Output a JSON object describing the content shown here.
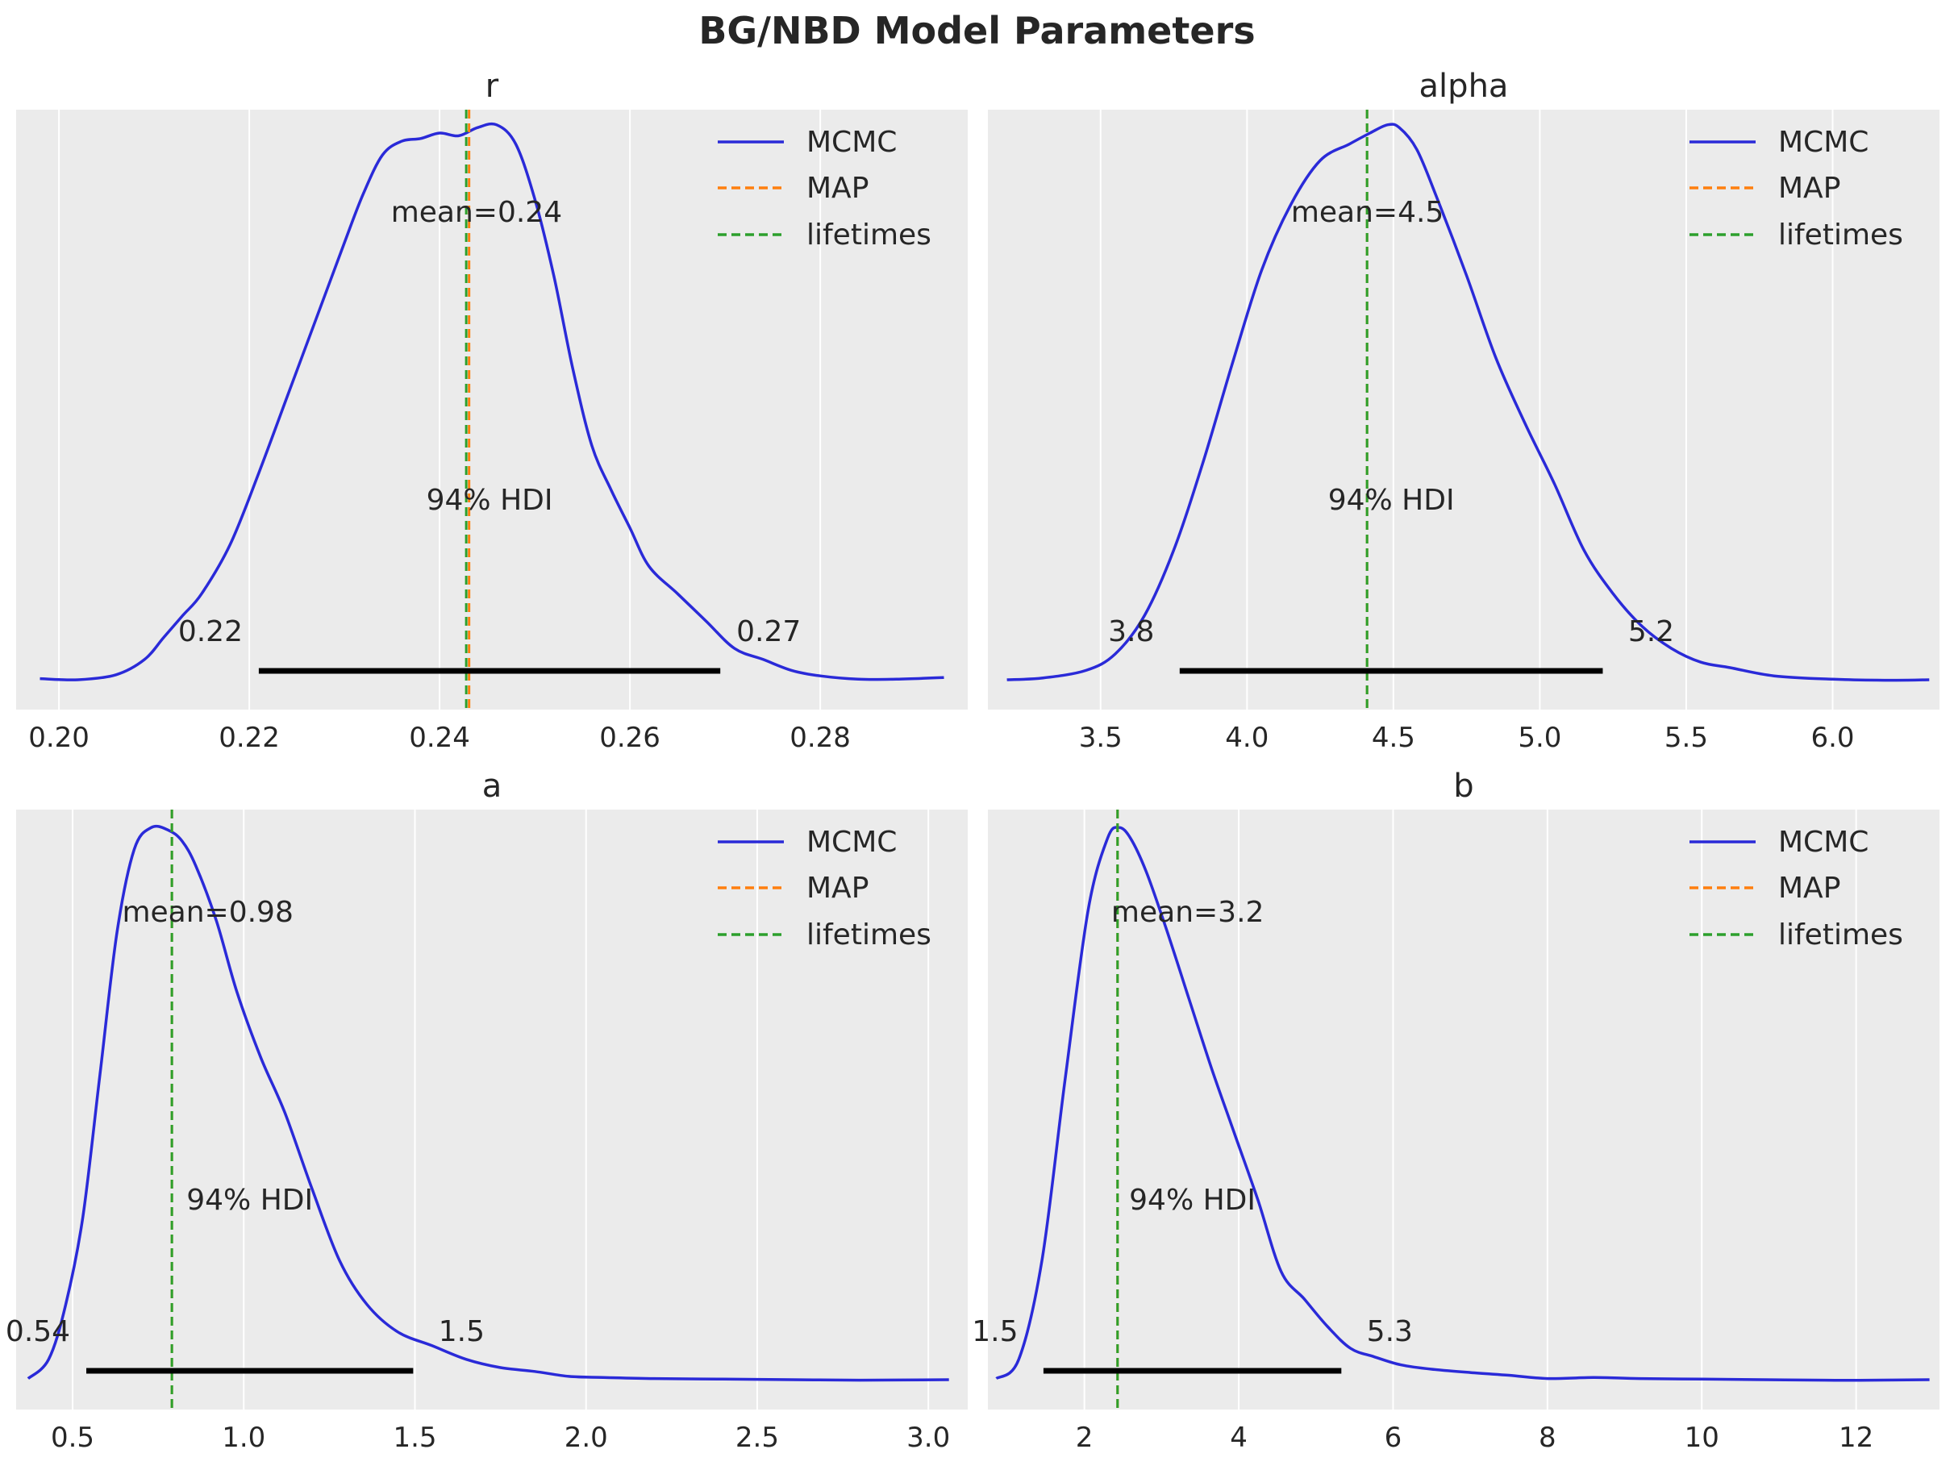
{
  "title": "BG/NBD Model Parameters",
  "colors": {
    "mcmc": "#2a2ad8",
    "map": "#ff7f0e",
    "lifetimes": "#2ca02c",
    "hdi": "#000000",
    "panel_bg": "#ebebeb"
  },
  "chart_data": [
    {
      "type": "line",
      "title": "r",
      "xlim": [
        0.1955,
        0.2955
      ],
      "xticks": [
        0.2,
        0.22,
        0.24,
        0.26,
        0.28
      ],
      "xtick_labels": [
        "0.20",
        "0.22",
        "0.24",
        "0.26",
        "0.28"
      ],
      "density": {
        "x": [
          0.198,
          0.202,
          0.206,
          0.209,
          0.211,
          0.213,
          0.215,
          0.218,
          0.221,
          0.224,
          0.227,
          0.23,
          0.232,
          0.234,
          0.236,
          0.238,
          0.24,
          0.242,
          0.244,
          0.246,
          0.248,
          0.25,
          0.252,
          0.254,
          0.256,
          0.258,
          0.26,
          0.262,
          0.265,
          0.268,
          0.271,
          0.274,
          0.277,
          0.28,
          0.284,
          0.288,
          0.293
        ],
        "y": [
          0.005,
          0.003,
          0.012,
          0.04,
          0.08,
          0.12,
          0.16,
          0.25,
          0.38,
          0.52,
          0.66,
          0.8,
          0.89,
          0.96,
          0.985,
          0.99,
          1.0,
          0.995,
          1.01,
          1.015,
          0.98,
          0.88,
          0.74,
          0.57,
          0.43,
          0.35,
          0.28,
          0.21,
          0.16,
          0.11,
          0.06,
          0.04,
          0.02,
          0.01,
          0.004,
          0.004,
          0.007
        ]
      },
      "mean_label": "mean=0.24",
      "hdi_label": "94% HDI",
      "hdi": [
        0.221,
        0.2695
      ],
      "hdi_low_label": "0.22",
      "hdi_high_label": "0.27",
      "map_value": 0.2431,
      "lifetimes_value": 0.2428
    },
    {
      "type": "line",
      "title": "alpha",
      "xlim": [
        3.115,
        6.365
      ],
      "xticks": [
        3.5,
        4.0,
        4.5,
        5.0,
        5.5,
        6.0
      ],
      "xtick_labels": [
        "3.5",
        "4.0",
        "4.5",
        "5.0",
        "5.5",
        "6.0"
      ],
      "density": {
        "x": [
          3.18,
          3.3,
          3.45,
          3.55,
          3.65,
          3.75,
          3.85,
          3.95,
          4.05,
          4.15,
          4.25,
          4.35,
          4.42,
          4.48,
          4.52,
          4.58,
          4.65,
          4.75,
          4.85,
          4.95,
          5.05,
          5.15,
          5.25,
          5.35,
          5.45,
          5.55,
          5.65,
          5.8,
          6.0,
          6.2,
          6.33
        ],
        "y": [
          0.003,
          0.006,
          0.02,
          0.05,
          0.12,
          0.24,
          0.4,
          0.58,
          0.75,
          0.87,
          0.95,
          0.98,
          1.0,
          1.015,
          1.01,
          0.97,
          0.88,
          0.74,
          0.59,
          0.47,
          0.36,
          0.24,
          0.16,
          0.1,
          0.06,
          0.035,
          0.025,
          0.01,
          0.004,
          0.002,
          0.003
        ]
      },
      "mean_label": "mean=4.5",
      "hdi_label": "94% HDI",
      "hdi": [
        3.77,
        5.215
      ],
      "hdi_low_label": "3.8",
      "hdi_high_label": "5.2",
      "map_value": 4.41,
      "lifetimes_value": 4.41
    },
    {
      "type": "line",
      "title": "a",
      "xlim": [
        0.335,
        3.115
      ],
      "xticks": [
        0.5,
        1.0,
        1.5,
        2.0,
        2.5,
        3.0
      ],
      "xtick_labels": [
        "0.5",
        "1.0",
        "1.5",
        "2.0",
        "2.5",
        "3.0"
      ],
      "density": {
        "x": [
          0.37,
          0.43,
          0.48,
          0.53,
          0.58,
          0.63,
          0.68,
          0.73,
          0.78,
          0.82,
          0.86,
          0.92,
          0.98,
          1.05,
          1.12,
          1.2,
          1.28,
          1.36,
          1.45,
          1.55,
          1.65,
          1.75,
          1.85,
          1.95,
          2.05,
          2.2,
          2.4,
          2.6,
          2.8,
          3.06
        ],
        "y": [
          0.005,
          0.04,
          0.14,
          0.3,
          0.56,
          0.82,
          0.97,
          1.01,
          1.005,
          0.985,
          0.94,
          0.84,
          0.71,
          0.59,
          0.49,
          0.35,
          0.22,
          0.14,
          0.09,
          0.065,
          0.04,
          0.025,
          0.018,
          0.009,
          0.007,
          0.005,
          0.004,
          0.003,
          0.002,
          0.003
        ]
      },
      "mean_label": "mean=0.98",
      "hdi_label": "94% HDI",
      "hdi": [
        0.54,
        1.495
      ],
      "hdi_low_label": "0.54",
      "hdi_high_label": "1.5",
      "map_value": 0.79,
      "lifetimes_value": 0.79
    },
    {
      "type": "line",
      "title": "b",
      "xlim": [
        0.75,
        13.08
      ],
      "xticks": [
        2,
        4,
        6,
        8,
        10,
        12
      ],
      "xtick_labels": [
        "2",
        "4",
        "6",
        "8",
        "10",
        "12"
      ],
      "density": {
        "x": [
          0.86,
          1.15,
          1.45,
          1.75,
          2.05,
          2.3,
          2.45,
          2.6,
          2.8,
          3.05,
          3.35,
          3.65,
          3.95,
          4.25,
          4.55,
          4.85,
          5.15,
          5.45,
          5.75,
          6.1,
          6.5,
          7.0,
          7.5,
          8.0,
          8.6,
          9.2,
          10.0,
          10.8,
          11.6,
          12.2,
          12.95
        ],
        "y": [
          0.005,
          0.04,
          0.22,
          0.55,
          0.86,
          0.99,
          1.01,
          0.99,
          0.93,
          0.83,
          0.7,
          0.57,
          0.45,
          0.33,
          0.2,
          0.15,
          0.1,
          0.06,
          0.045,
          0.03,
          0.022,
          0.016,
          0.011,
          0.005,
          0.007,
          0.005,
          0.004,
          0.003,
          0.002,
          0.002,
          0.003
        ]
      },
      "mean_label": "mean=3.2",
      "hdi_label": "94% HDI",
      "hdi": [
        1.47,
        5.33
      ],
      "hdi_low_label": "1.5",
      "hdi_high_label": "5.3",
      "map_value": 2.43,
      "lifetimes_value": 2.43
    }
  ],
  "legend": {
    "mcmc": "MCMC",
    "map": "MAP",
    "lifetimes": "lifetimes"
  }
}
